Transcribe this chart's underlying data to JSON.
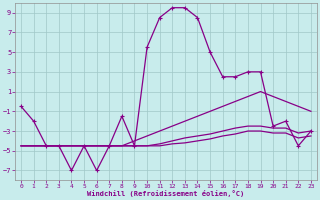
{
  "xlabel": "Windchill (Refroidissement éolien,°C)",
  "background_color": "#c8ecec",
  "grid_color": "#a0c8c8",
  "line_color": "#880088",
  "xlim": [
    -0.5,
    23.5
  ],
  "ylim": [
    -8,
    10
  ],
  "xticks": [
    0,
    1,
    2,
    3,
    4,
    5,
    6,
    7,
    8,
    9,
    10,
    11,
    12,
    13,
    14,
    15,
    16,
    17,
    18,
    19,
    20,
    21,
    22,
    23
  ],
  "yticks": [
    -7,
    -5,
    -3,
    -1,
    1,
    3,
    5,
    7,
    9
  ],
  "hours": [
    0,
    1,
    2,
    3,
    4,
    5,
    6,
    7,
    8,
    9,
    10,
    11,
    12,
    13,
    14,
    15,
    16,
    17,
    18,
    19,
    20,
    21,
    22,
    23
  ],
  "curve_main": [
    -0.5,
    -2.0,
    -4.5,
    -4.5,
    -7.0,
    -4.5,
    -7.0,
    -4.5,
    -1.5,
    -4.5,
    5.5,
    8.5,
    9.5,
    9.5,
    8.5,
    5.0,
    2.5,
    2.5,
    3.0,
    3.0,
    -2.5,
    -2.0,
    -4.5,
    -3.0
  ],
  "curve_a": [
    -4.5,
    -4.5,
    -4.5,
    -4.5,
    -4.5,
    -4.5,
    -4.5,
    -4.5,
    -4.5,
    -4.0,
    -3.5,
    -3.0,
    -2.5,
    -2.0,
    -1.5,
    -1.0,
    -0.5,
    0.0,
    0.5,
    1.0,
    0.5,
    0.0,
    -0.5,
    -1.0
  ],
  "curve_b": [
    -4.5,
    -4.5,
    -4.5,
    -4.5,
    -4.5,
    -4.5,
    -4.5,
    -4.5,
    -4.5,
    -4.5,
    -4.5,
    -4.3,
    -4.0,
    -3.7,
    -3.5,
    -3.3,
    -3.0,
    -2.7,
    -2.5,
    -2.5,
    -2.7,
    -2.7,
    -3.2,
    -3.0
  ],
  "curve_c": [
    -4.5,
    -4.5,
    -4.5,
    -4.5,
    -4.5,
    -4.5,
    -4.5,
    -4.5,
    -4.5,
    -4.5,
    -4.5,
    -4.5,
    -4.3,
    -4.2,
    -4.0,
    -3.8,
    -3.5,
    -3.3,
    -3.0,
    -3.0,
    -3.2,
    -3.2,
    -3.7,
    -3.5
  ]
}
